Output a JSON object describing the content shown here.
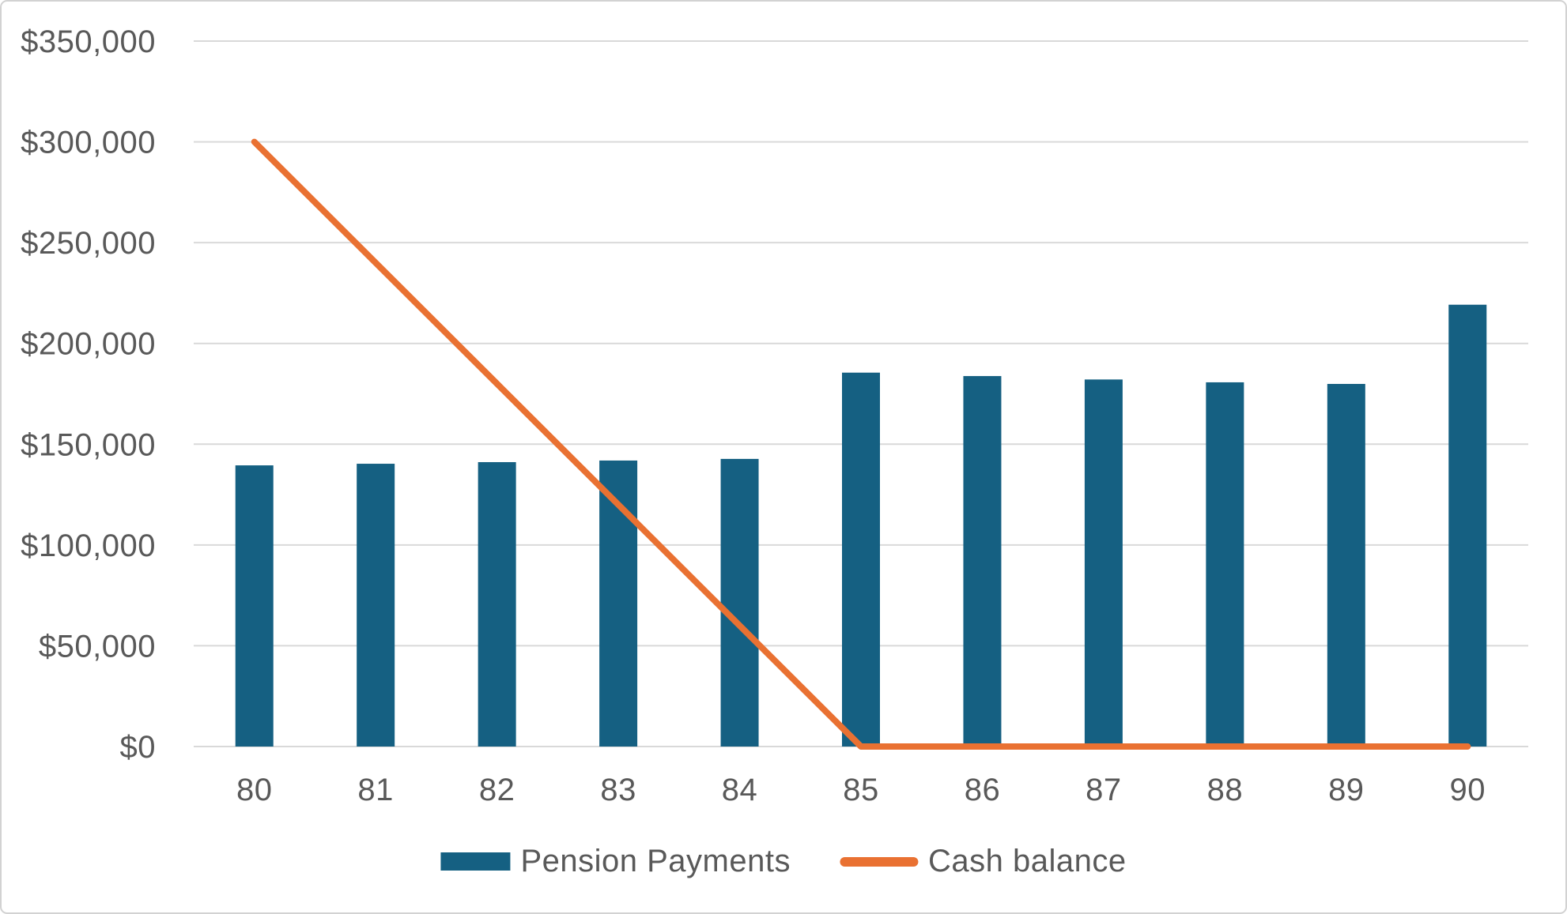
{
  "chart_data": {
    "type": "combo",
    "title": "",
    "xlabel": "",
    "ylabel": "",
    "categories": [
      "80",
      "81",
      "82",
      "83",
      "84",
      "85",
      "86",
      "87",
      "88",
      "89",
      "90"
    ],
    "series": [
      {
        "name": "Pension Payments",
        "type": "bar",
        "color": "#156082",
        "values": [
          139500,
          140300,
          141100,
          141900,
          142700,
          185500,
          183800,
          182100,
          180700,
          179900,
          219200
        ]
      },
      {
        "name": "Cash balance",
        "type": "line",
        "color": "#E97132",
        "values": [
          300000,
          240000,
          180000,
          120000,
          60000,
          0,
          0,
          0,
          0,
          0,
          0
        ]
      }
    ],
    "ylim": [
      0,
      350000
    ],
    "ytick_step": 50000,
    "y_tick_labels": [
      "$0",
      "$50,000",
      "$100,000",
      "$150,000",
      "$200,000",
      "$250,000",
      "$300,000",
      "$350,000"
    ],
    "grid": true,
    "legend_position": "bottom"
  },
  "style": {
    "axis_text_color": "#595959",
    "gridline_color": "#d9d9d9",
    "background": "#ffffff",
    "frame_border": "#d2d2d2"
  }
}
